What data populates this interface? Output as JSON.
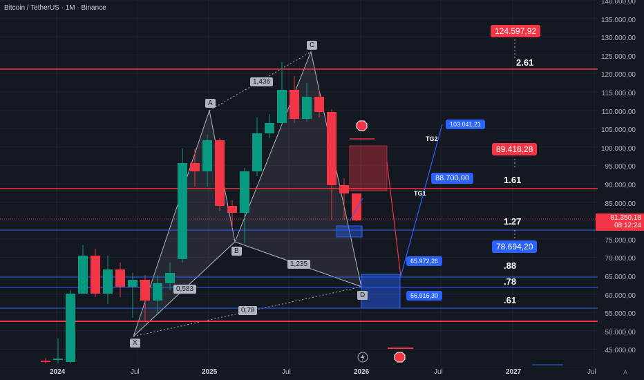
{
  "title": "Bitcoin / TetherUS · 1M · Binance",
  "price_axis": [
    "140.000,00",
    "135.000,00",
    "130.000,00",
    "125.000,00",
    "120.000,00",
    "115.000,00",
    "110.000,00",
    "105.000,00",
    "100.000,00",
    "95.000,00",
    "90.000,00",
    "85.000,00",
    "80.000,00",
    "75.000,00",
    "70.000,00",
    "65.000,00",
    "60.000,00",
    "55.000,00",
    "50.000,00",
    "45.000,00"
  ],
  "date_axis": [
    {
      "label": "2024",
      "bold": true
    },
    {
      "label": "Jul",
      "bold": false
    },
    {
      "label": "2025",
      "bold": true
    },
    {
      "label": "Jul",
      "bold": false
    },
    {
      "label": "2026",
      "bold": true
    },
    {
      "label": "Jul",
      "bold": false
    },
    {
      "label": "2027",
      "bold": true
    },
    {
      "label": "Jul",
      "bold": false
    }
  ],
  "current_price": {
    "value": "81.350,18",
    "countdown": "08:12:24"
  },
  "labels": {
    "X": "X",
    "A": "A",
    "B": "B",
    "C": "C",
    "D": "D",
    "ratio_xab": "0,583",
    "ratio_abc": "1,436",
    "ratio_bcd": "1,235",
    "ratio_xad": "0,78",
    "tg1": "TG1",
    "tg2": "TG2",
    "price_124": "124.597,92",
    "price_89": "89.418,28",
    "price_88": "88.700,00",
    "price_103": "103.041,21",
    "price_78": "78.694,20",
    "price_65": "65.972,26",
    "price_56": "56.916,30",
    "fib_261": "2.61",
    "fib_161": "1.61",
    "fib_127": "1.27",
    "fib_88": ".88",
    "fib_78": ".78",
    "fib_61": ".61"
  },
  "colors": {
    "up": "#089981",
    "down": "#f23645",
    "bg": "#141821",
    "grid": "#232632",
    "blue": "#2962ff",
    "red": "#f23645"
  },
  "logo": "A"
}
